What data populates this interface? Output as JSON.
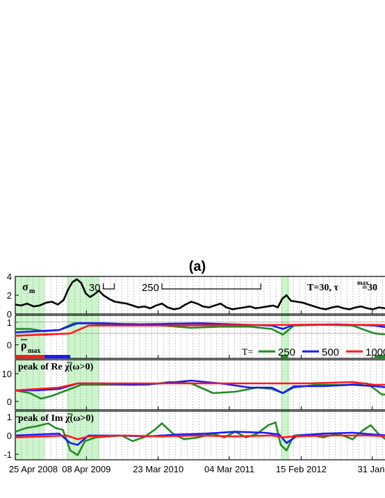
{
  "chart_data": {
    "type": "line",
    "title": "(a)",
    "time_axis": {
      "ticks": [
        "25 Apr 2008",
        "08 Apr 2009",
        "23 Mar 2010",
        "04 Mar 2011",
        "15 Feb 2012",
        "31 Jan"
      ]
    },
    "highlight_bands": [
      [
        2008.0,
        2008.4
      ],
      [
        2008.7,
        2009.15
      ],
      [
        2011.62,
        2011.74
      ]
    ],
    "panels": [
      {
        "id": "sigma",
        "label_main": "σ",
        "label_sub": "m",
        "ylim": [
          0,
          4
        ],
        "yticks": [
          "0",
          "2",
          "4"
        ],
        "annotation_title": "T=30, τ",
        "annotation_sup": "max",
        "annotation_value": "=30",
        "scale_bars": [
          {
            "label": "30",
            "from": 2009.2,
            "to": 2009.35
          },
          {
            "label": "250",
            "from": 2010.0,
            "to": 2011.35
          }
        ],
        "series": [
          {
            "color": "#000000",
            "x": [
              2008.0,
              2008.08,
              2008.16,
              2008.25,
              2008.33,
              2008.42,
              2008.5,
              2008.58,
              2008.66,
              2008.72,
              2008.78,
              2008.84,
              2008.9,
              2008.96,
              2009.02,
              2009.08,
              2009.14,
              2009.2,
              2009.28,
              2009.36,
              2009.44,
              2009.52,
              2009.6,
              2009.68,
              2009.76,
              2009.84,
              2009.92,
              2010.0,
              2010.08,
              2010.16,
              2010.24,
              2010.32,
              2010.4,
              2010.48,
              2010.56,
              2010.64,
              2010.72,
              2010.8,
              2010.88,
              2010.96,
              2011.04,
              2011.12,
              2011.2,
              2011.28,
              2011.36,
              2011.44,
              2011.52,
              2011.58,
              2011.64,
              2011.7,
              2011.76,
              2011.84,
              2011.92,
              2012.0,
              2012.08,
              2012.16,
              2012.24,
              2012.32,
              2012.4,
              2012.48,
              2012.56,
              2012.64,
              2012.72,
              2012.8,
              2012.88,
              2012.96,
              2013.04,
              2013.1
            ],
            "y": [
              1.0,
              0.9,
              1.1,
              0.8,
              0.9,
              1.2,
              1.3,
              1.0,
              1.5,
              2.6,
              3.4,
              3.7,
              3.3,
              2.2,
              1.8,
              2.1,
              2.5,
              2.0,
              1.6,
              1.3,
              1.2,
              1.1,
              0.9,
              0.7,
              0.8,
              0.6,
              0.9,
              1.1,
              0.7,
              0.5,
              0.6,
              1.0,
              1.3,
              1.1,
              0.8,
              0.7,
              0.9,
              1.1,
              0.7,
              0.5,
              0.6,
              0.7,
              0.8,
              0.6,
              0.7,
              0.8,
              0.9,
              0.7,
              1.6,
              2.0,
              1.4,
              1.3,
              1.2,
              1.0,
              0.8,
              0.6,
              0.5,
              0.7,
              0.8,
              0.6,
              0.5,
              0.7,
              0.8,
              0.6,
              0.5,
              0.7,
              0.6,
              0.5
            ]
          }
        ]
      },
      {
        "id": "rho",
        "label_main": "ρ",
        "label_sub": "max",
        "ylim": [
          -0.6,
          1.3
        ],
        "yticks": [
          "0",
          "1"
        ],
        "legend": {
          "prefix": "T=",
          "entries": [
            "250",
            "500",
            "1000"
          ]
        },
        "series": [
          {
            "name": "250",
            "color": "#228b22",
            "x": [
              2008.0,
              2008.2,
              2008.4,
              2008.6,
              2008.8,
              2009.0,
              2009.3,
              2009.6,
              2010.0,
              2010.4,
              2010.8,
              2011.2,
              2011.5,
              2011.65,
              2011.8,
              2012.2,
              2012.6,
              2012.9,
              2013.1
            ],
            "y": [
              0.7,
              0.7,
              0.6,
              0.65,
              0.95,
              0.95,
              0.9,
              0.92,
              0.85,
              0.75,
              0.8,
              0.8,
              0.7,
              0.45,
              0.85,
              0.88,
              0.85,
              0.5,
              0.45
            ]
          },
          {
            "name": "500",
            "color": "#1a1aff",
            "x": [
              2008.0,
              2008.3,
              2008.6,
              2008.85,
              2009.2,
              2009.6,
              2010.0,
              2010.5,
              2011.0,
              2011.5,
              2011.65,
              2011.8,
              2012.4,
              2012.9,
              2013.1
            ],
            "y": [
              0.55,
              0.6,
              0.65,
              0.95,
              0.95,
              0.9,
              0.92,
              0.95,
              0.9,
              0.85,
              0.7,
              0.88,
              0.9,
              0.85,
              0.75
            ]
          },
          {
            "name": "1000",
            "color": "#ff1a1a",
            "x": [
              2008.0,
              2008.4,
              2008.75,
              2009.0,
              2010.0,
              2011.0,
              2012.0,
              2012.8,
              2013.1
            ],
            "y": [
              0.4,
              0.45,
              0.5,
              0.85,
              0.85,
              0.87,
              0.88,
              0.88,
              0.87
            ]
          }
        ],
        "bottom_bars": [
          {
            "color": "#ff1a1a",
            "from": 2008.0,
            "to": 2008.7
          },
          {
            "color": "#1a1aff",
            "from": 2008.4,
            "to": 2008.75
          },
          {
            "color": "#228b22",
            "from": 2011.62,
            "to": 2011.72
          },
          {
            "color": "#228b22",
            "from": 2012.9,
            "to": 2013.1
          }
        ]
      },
      {
        "id": "re",
        "label_text": "peak of Re χ̅(ω>0)",
        "ylim": [
          -3,
          15
        ],
        "yticks": [
          "0",
          "10"
        ],
        "series": [
          {
            "name": "250",
            "color": "#228b22",
            "x": [
              2008.0,
              2008.2,
              2008.35,
              2008.5,
              2008.7,
              2008.9,
              2009.2,
              2009.5,
              2009.8,
              2010.1,
              2010.4,
              2010.7,
              2011.0,
              2011.3,
              2011.5,
              2011.65,
              2011.8,
              2012.1,
              2012.5,
              2012.8,
              2013.0,
              2013.1
            ],
            "y": [
              4.0,
              3.0,
              1.0,
              2.0,
              4.0,
              6.0,
              6.0,
              6.0,
              6.0,
              7.0,
              6.5,
              3.0,
              3.5,
              5.0,
              4.5,
              3.0,
              5.0,
              6.0,
              6.0,
              6.5,
              2.5,
              2.5
            ]
          },
          {
            "name": "500",
            "color": "#1a1aff",
            "x": [
              2008.0,
              2008.3,
              2008.6,
              2008.85,
              2009.2,
              2009.6,
              2010.0,
              2010.4,
              2010.8,
              2011.2,
              2011.5,
              2011.65,
              2011.8,
              2012.2,
              2012.6,
              2012.9,
              2013.1
            ],
            "y": [
              4.0,
              4.0,
              4.5,
              6.5,
              6.5,
              6.0,
              6.5,
              7.5,
              6.5,
              5.0,
              5.0,
              3.0,
              5.5,
              5.5,
              6.0,
              5.5,
              5.0
            ]
          },
          {
            "name": "1000",
            "color": "#ff1a1a",
            "x": [
              2008.0,
              2008.3,
              2008.6,
              2008.85,
              2009.2,
              2010.0,
              2011.0,
              2012.0,
              2012.6,
              2012.9,
              2013.1
            ],
            "y": [
              4.0,
              4.5,
              5.0,
              6.5,
              6.5,
              6.5,
              6.5,
              6.5,
              7.0,
              6.0,
              6.0
            ]
          }
        ]
      },
      {
        "id": "im",
        "label_text": "peak of Im χ̅(ω>0)",
        "ylim": [
          -1.3,
          1.3
        ],
        "yticks": [
          "-1",
          "0",
          "1"
        ],
        "series": [
          {
            "name": "250",
            "color": "#228b22",
            "x": [
              2008.0,
              2008.15,
              2008.3,
              2008.45,
              2008.55,
              2008.65,
              2008.75,
              2008.85,
              2008.95,
              2009.1,
              2009.3,
              2009.45,
              2009.6,
              2009.75,
              2009.9,
              2010.0,
              2010.15,
              2010.3,
              2010.5,
              2010.7,
              2010.85,
              2011.0,
              2011.15,
              2011.3,
              2011.45,
              2011.55,
              2011.62,
              2011.7,
              2011.8,
              2012.0,
              2012.2,
              2012.4,
              2012.6,
              2012.75,
              2012.85,
              2012.95,
              2013.05,
              2013.1
            ],
            "y": [
              0.2,
              0.4,
              0.5,
              0.65,
              0.4,
              0.3,
              -0.8,
              -1.05,
              -0.3,
              -0.1,
              -0.05,
              0.0,
              -0.3,
              -0.1,
              0.3,
              0.65,
              0.1,
              -0.2,
              -0.1,
              0.1,
              -0.1,
              0.2,
              -0.1,
              0.1,
              0.55,
              0.7,
              -0.5,
              -0.8,
              0.0,
              0.05,
              -0.1,
              0.1,
              -0.2,
              0.3,
              0.55,
              0.1,
              -0.2,
              -0.1
            ]
          },
          {
            "name": "500",
            "color": "#1a1aff",
            "x": [
              2008.0,
              2008.3,
              2008.6,
              2008.75,
              2008.85,
              2009.0,
              2009.4,
              2009.8,
              2010.2,
              2010.6,
              2011.0,
              2011.4,
              2011.6,
              2011.7,
              2011.85,
              2012.2,
              2012.6,
              2012.9,
              2013.1
            ],
            "y": [
              0.0,
              0.05,
              0.1,
              -0.4,
              -0.5,
              0.0,
              0.0,
              -0.05,
              0.05,
              0.1,
              0.2,
              0.15,
              0.05,
              -0.4,
              0.0,
              0.1,
              0.15,
              0.05,
              0.0
            ]
          },
          {
            "name": "1000",
            "color": "#ff1a1a",
            "x": [
              2008.0,
              2008.4,
              2008.7,
              2008.85,
              2009.0,
              2009.5,
              2010.0,
              2010.5,
              2011.0,
              2011.5,
              2011.65,
              2011.8,
              2012.3,
              2012.8,
              2013.1
            ],
            "y": [
              -0.1,
              -0.05,
              0.0,
              -0.2,
              -0.05,
              0.0,
              -0.05,
              0.0,
              -0.05,
              0.0,
              -0.1,
              -0.05,
              0.0,
              0.0,
              -0.05
            ]
          }
        ]
      }
    ]
  }
}
